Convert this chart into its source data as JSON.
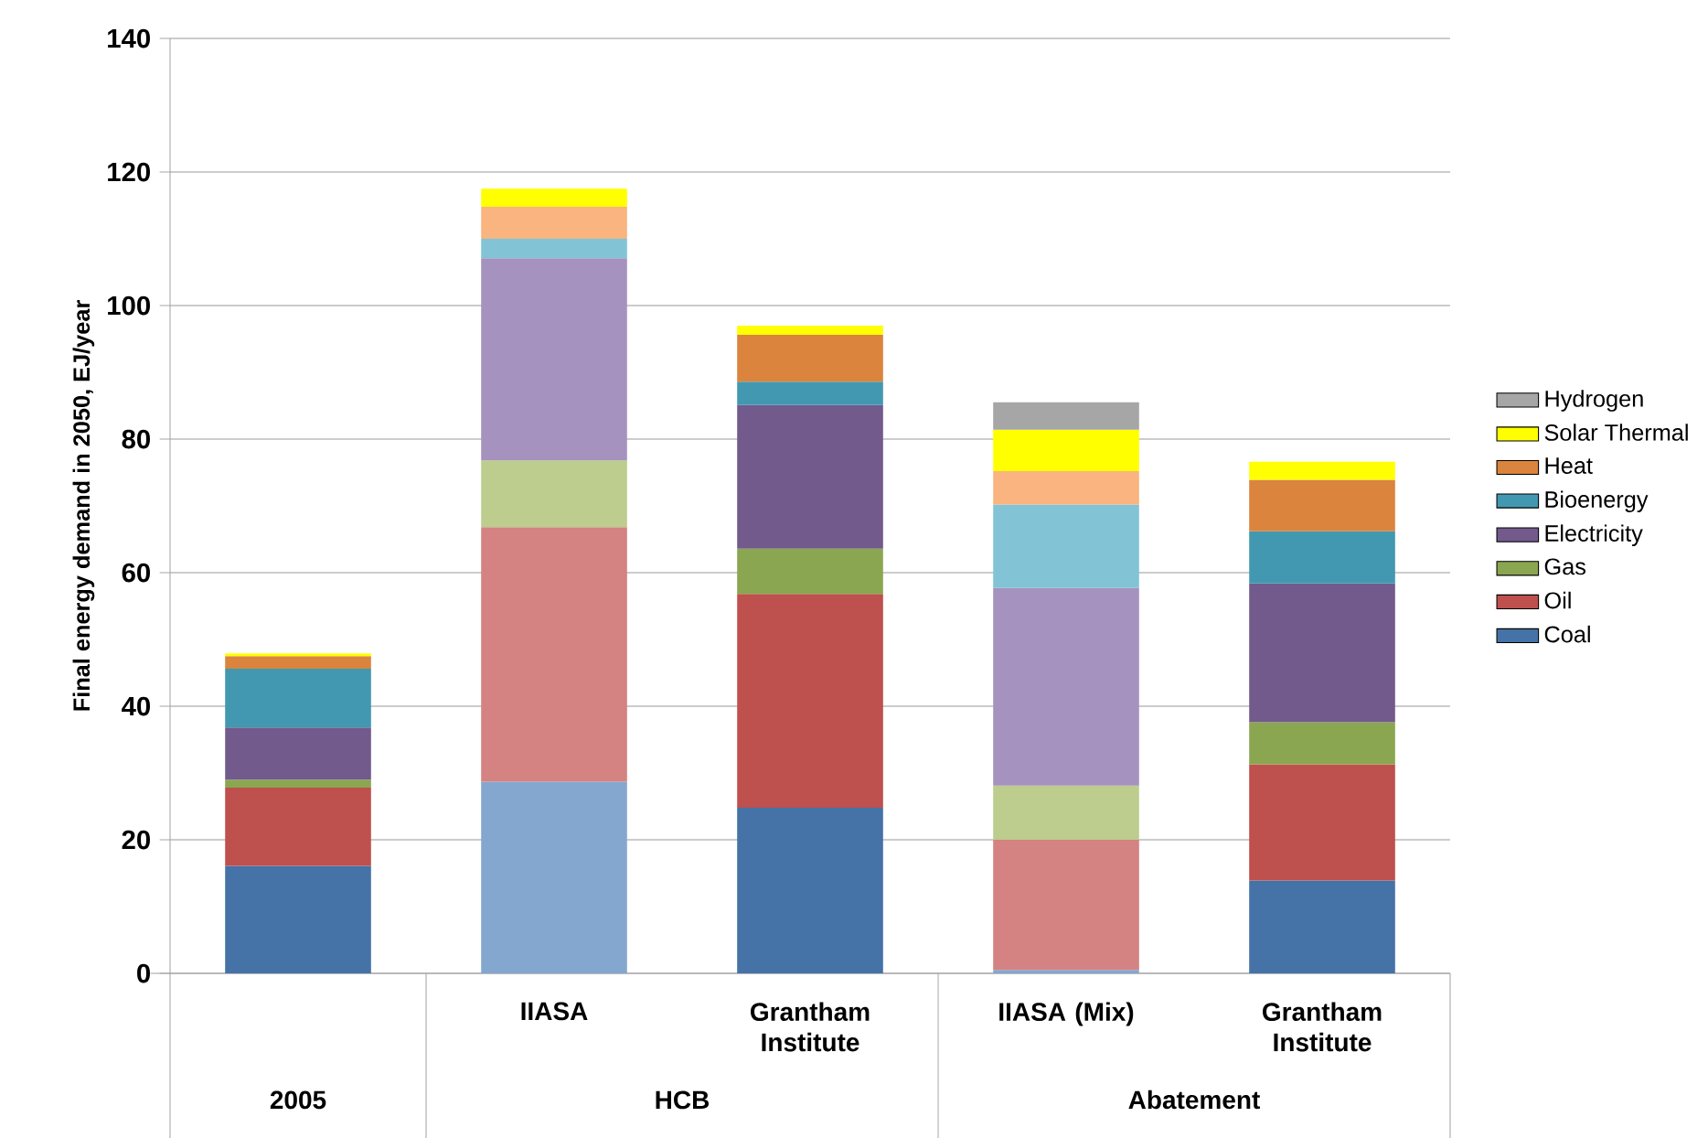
{
  "chart_data": {
    "type": "bar",
    "stacked": true,
    "ylabel": "Final energy demand in 2050, EJ/year",
    "categories": [
      null,
      "IIASA",
      "Grantham Institute",
      "IIASA (Mix)",
      "Grantham Institute"
    ],
    "annotations": [
      "2005",
      "HCB",
      "Abatement"
    ],
    "ylim": [
      0,
      140
    ],
    "yticks": [
      0,
      20,
      40,
      60,
      80,
      100,
      120,
      140
    ],
    "grid": "y",
    "legend": "right",
    "series": [
      {
        "name": "Coal",
        "color": "#4572a7",
        "colors": [
          "#4572a7",
          "#84a7cf",
          "#4572a7",
          "#84a7cf",
          "#4572a7"
        ],
        "values": [
          16.1,
          28.7,
          24.8,
          0.5,
          13.9
        ]
      },
      {
        "name": "Oil",
        "color": "#be504d",
        "colors": [
          "#be504d",
          "#d48282",
          "#be504d",
          "#d48282",
          "#be504d"
        ],
        "values": [
          11.7,
          38.1,
          32.0,
          19.5,
          17.4
        ]
      },
      {
        "name": "Gas",
        "color": "#8ba650",
        "colors": [
          "#8ba650",
          "#bccd8d",
          "#8ba650",
          "#bccd8d",
          "#8ba650"
        ],
        "values": [
          1.2,
          10.0,
          6.8,
          8.1,
          6.3
        ]
      },
      {
        "name": "Electricity",
        "color": "#725a8c",
        "colors": [
          "#725a8c",
          "#a592be",
          "#725a8c",
          "#a592be",
          "#725a8c"
        ],
        "values": [
          7.8,
          30.3,
          21.5,
          29.6,
          20.8
        ]
      },
      {
        "name": "Bioenergy",
        "color": "#4298b0",
        "colors": [
          "#4298b0",
          "#82c4d5",
          "#4298b0",
          "#82c4d5",
          "#4298b0"
        ],
        "values": [
          8.8,
          2.9,
          3.5,
          12.5,
          7.8
        ]
      },
      {
        "name": "Heat",
        "color": "#db843d",
        "colors": [
          "#db843d",
          "#f9b47f",
          "#db843d",
          "#f9b47f",
          "#db843d"
        ],
        "values": [
          1.9,
          4.8,
          7.0,
          5.0,
          7.7
        ]
      },
      {
        "name": "Solar Thermal",
        "color": "#ffff00",
        "colors": [
          "#ffff00",
          "#ffff00",
          "#ffff00",
          "#ffff00",
          "#ffff00"
        ],
        "values": [
          0.4,
          2.7,
          1.4,
          6.2,
          2.7
        ]
      },
      {
        "name": "Hydrogen",
        "color": "#a6a6a6",
        "colors": [
          "#a6a6a6",
          "#a6a6a6",
          "#a6a6a6",
          "#a6a6a6",
          "#a6a6a6"
        ],
        "values": [
          0,
          0,
          0,
          4.1,
          0
        ]
      }
    ]
  }
}
